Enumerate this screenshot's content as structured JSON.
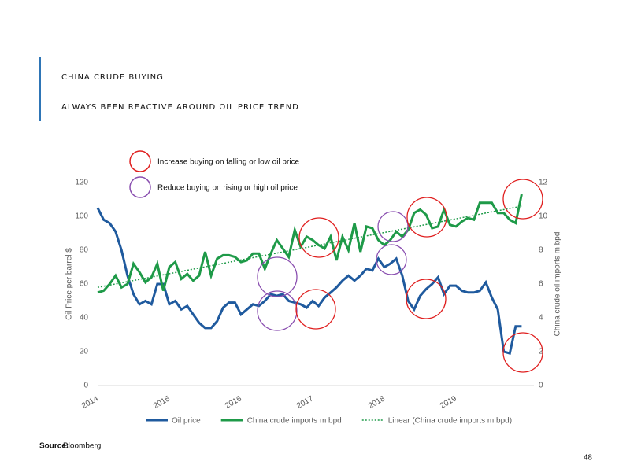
{
  "title": "CHINA CRUDE BUYING",
  "subtitle": "ALWAYS BEEN REACTIVE AROUND OIL PRICE TREND",
  "annotations": [
    "Increase buying on falling or low oil price",
    "Reduce buying on rising or high oil price"
  ],
  "source_label": "Source:",
  "source": "Bloomberg",
  "page_number": "48",
  "chart_data": {
    "type": "line",
    "y_label": "Oil Price per barrel $",
    "y2_label": "China crude oil imports m bpd",
    "x": [
      2014,
      2014.083,
      2014.167,
      2014.25,
      2014.333,
      2014.417,
      2014.5,
      2014.583,
      2014.667,
      2014.75,
      2014.833,
      2014.917,
      2015,
      2015.083,
      2015.167,
      2015.25,
      2015.333,
      2015.417,
      2015.5,
      2015.583,
      2015.667,
      2015.75,
      2015.833,
      2015.917,
      2016,
      2016.083,
      2016.167,
      2016.25,
      2016.333,
      2016.417,
      2016.5,
      2016.583,
      2016.667,
      2016.75,
      2016.833,
      2016.917,
      2017,
      2017.083,
      2017.167,
      2017.25,
      2017.333,
      2017.417,
      2017.5,
      2017.583,
      2017.667,
      2017.75,
      2017.833,
      2017.917,
      2018,
      2018.083,
      2018.167,
      2018.25,
      2018.333,
      2018.417,
      2018.5,
      2018.583,
      2018.667,
      2018.75,
      2018.833,
      2018.917,
      2019,
      2019.083,
      2019.167,
      2019.25,
      2019.333,
      2019.417,
      2019.5,
      2019.583,
      2019.667,
      2019.75,
      2019.833,
      2019.917
    ],
    "series": [
      {
        "name": "Oil price",
        "color": "#1f5a9e",
        "values": [
          105,
          98,
          96,
          91,
          80,
          65,
          54,
          48,
          50,
          48,
          60,
          60,
          48,
          50,
          45,
          47,
          42,
          37,
          34,
          34,
          38,
          46,
          49,
          49,
          42,
          45,
          48,
          47,
          50,
          54,
          53,
          54,
          50,
          49,
          48,
          46,
          50,
          47,
          52,
          55,
          58,
          62,
          65,
          62,
          65,
          69,
          68,
          75,
          70,
          72,
          75,
          65,
          50,
          45,
          53,
          57,
          60,
          64,
          54,
          59,
          59,
          56,
          55,
          55,
          56,
          61,
          52,
          45,
          20,
          19,
          35,
          35
        ]
      },
      {
        "name": "China crude imports m bpd",
        "color": "#1e9a48",
        "axis": "y2",
        "values": [
          5.5,
          5.6,
          6.0,
          6.5,
          5.8,
          6.0,
          7.2,
          6.7,
          6.1,
          6.4,
          7.2,
          5.6,
          7.0,
          7.3,
          6.3,
          6.6,
          6.2,
          6.5,
          7.9,
          6.5,
          7.5,
          7.7,
          7.7,
          7.6,
          7.3,
          7.4,
          7.8,
          7.8,
          6.9,
          7.8,
          8.6,
          8.1,
          7.6,
          9.2,
          8.2,
          8.8,
          8.6,
          8.3,
          8.1,
          8.8,
          7.4,
          8.8,
          8.0,
          9.6,
          7.9,
          9.4,
          9.3,
          8.6,
          8.3,
          8.6,
          9.1,
          8.8,
          9.2,
          10.2,
          10.4,
          10.1,
          9.3,
          9.4,
          10.4,
          9.5,
          9.4,
          9.7,
          9.9,
          9.8,
          10.8,
          10.8,
          10.8,
          10.2,
          10.2,
          9.8,
          9.6,
          11.3
        ]
      },
      {
        "name": "Linear (China crude imports m bpd)",
        "color": "#1e9a48",
        "axis": "y2",
        "dashed": true,
        "x": [
          2014,
          2019.917
        ],
        "values": [
          5.8,
          10.6
        ]
      }
    ],
    "xlim": [
      2014,
      2020
    ],
    "xticks": [
      2014,
      2015,
      2016,
      2017,
      2018,
      2019
    ],
    "ylim": [
      0,
      120
    ],
    "yticks": [
      0,
      20,
      40,
      60,
      80,
      100,
      120
    ],
    "y2lim": [
      0,
      12
    ],
    "y2ticks": [
      0,
      2,
      4,
      6,
      8,
      10,
      12
    ],
    "legend": "bottom"
  }
}
